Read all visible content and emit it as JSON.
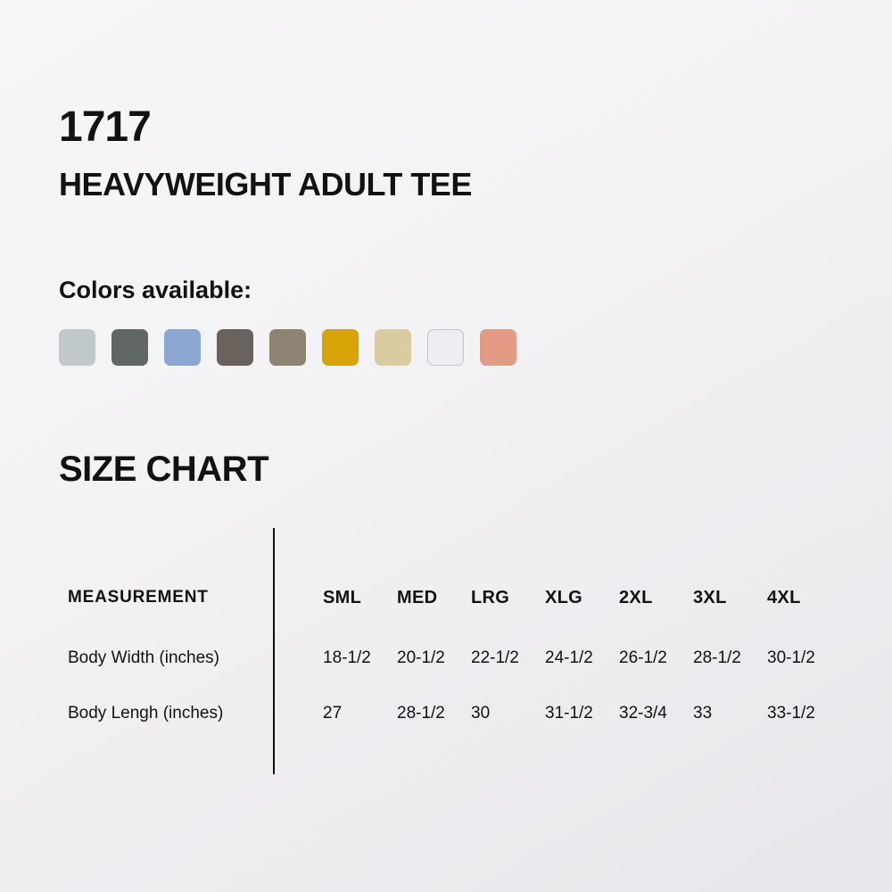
{
  "product": {
    "code": "1717",
    "name": "HEAVYWEIGHT ADULT TEE"
  },
  "colors_section": {
    "heading": "Colors available:",
    "swatches": [
      {
        "name": "light-gray",
        "hex": "#c1c8cb"
      },
      {
        "name": "charcoal-green",
        "hex": "#5f6866"
      },
      {
        "name": "periwinkle-blue",
        "hex": "#8da5d1"
      },
      {
        "name": "dark-taupe",
        "hex": "#6a635d"
      },
      {
        "name": "olive-taupe",
        "hex": "#8c8372"
      },
      {
        "name": "mustard-gold",
        "hex": "#d8a309"
      },
      {
        "name": "khaki-tan",
        "hex": "#d9cca0"
      },
      {
        "name": "white",
        "hex": "#eeedf1"
      },
      {
        "name": "salmon",
        "hex": "#e39b85"
      }
    ]
  },
  "size_chart": {
    "heading": "SIZE CHART",
    "measurement_header": "MEASUREMENT",
    "columns": [
      "SML",
      "MED",
      "LRG",
      "XLG",
      "2XL",
      "3XL",
      "4XL"
    ],
    "rows": [
      {
        "label": "Body Width (inches)",
        "values": [
          "18-1/2",
          "20-1/2",
          "22-1/2",
          "24-1/2",
          "26-1/2",
          "28-1/2",
          "30-1/2"
        ]
      },
      {
        "label": "Body Lengh (inches)",
        "values": [
          "27",
          "28-1/2",
          "30",
          "31-1/2",
          "32-3/4",
          "33",
          "33-1/2"
        ]
      }
    ]
  }
}
